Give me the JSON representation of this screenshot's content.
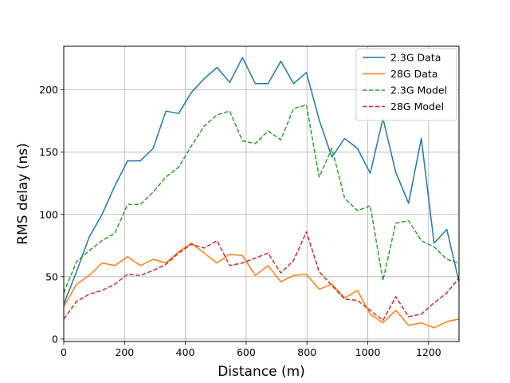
{
  "chart_data": {
    "type": "line",
    "xlabel": "Distance (m)",
    "ylabel": "RMS delay (ns)",
    "xlim": [
      0,
      1300
    ],
    "ylim": [
      -2,
      235
    ],
    "xticks": [
      0,
      200,
      400,
      600,
      800,
      1000,
      1200
    ],
    "yticks": [
      0,
      50,
      100,
      150,
      200
    ],
    "grid": true,
    "legend_position": "top-right",
    "x": [
      0,
      42,
      84,
      126,
      168,
      210,
      252,
      294,
      336,
      378,
      420,
      462,
      504,
      546,
      588,
      630,
      672,
      714,
      756,
      798,
      840,
      882,
      924,
      966,
      1008,
      1050,
      1092,
      1134,
      1176,
      1218,
      1260,
      1300
    ],
    "series": [
      {
        "name": "2.3G Data",
        "color": "#1f77b4",
        "dash": "solid",
        "values": [
          28,
          54,
          82,
          100,
          123,
          143,
          143,
          153,
          183,
          181,
          198,
          209,
          218,
          206,
          226,
          205,
          205,
          223,
          205,
          214,
          176,
          146,
          161,
          153,
          133,
          177,
          134,
          109,
          161,
          77,
          88,
          46
        ]
      },
      {
        "name": "28G Data",
        "color": "#ff7f0e",
        "dash": "solid",
        "values": [
          26,
          44,
          51,
          61,
          59,
          66,
          59,
          64,
          61,
          70,
          77,
          69,
          61,
          68,
          67,
          51,
          59,
          46,
          51,
          52,
          40,
          44,
          33,
          39,
          20,
          13,
          23,
          11,
          13,
          9,
          14,
          16
        ]
      },
      {
        "name": "2.3G Model",
        "color": "#2ca02c",
        "dash": "dashed",
        "values": [
          37,
          62,
          71,
          79,
          85,
          108,
          108,
          118,
          130,
          138,
          155,
          171,
          180,
          183,
          159,
          157,
          167,
          160,
          185,
          188,
          130,
          153,
          113,
          103,
          107,
          47,
          93,
          95,
          79,
          74,
          64,
          61
        ]
      },
      {
        "name": "28G Model",
        "color": "#d62728",
        "dash": "dashed",
        "values": [
          16,
          30,
          36,
          39,
          44,
          52,
          51,
          55,
          60,
          69,
          76,
          73,
          79,
          59,
          61,
          65,
          69,
          53,
          63,
          86,
          54,
          43,
          32,
          31,
          23,
          15,
          34,
          18,
          20,
          29,
          37,
          49
        ]
      }
    ]
  }
}
